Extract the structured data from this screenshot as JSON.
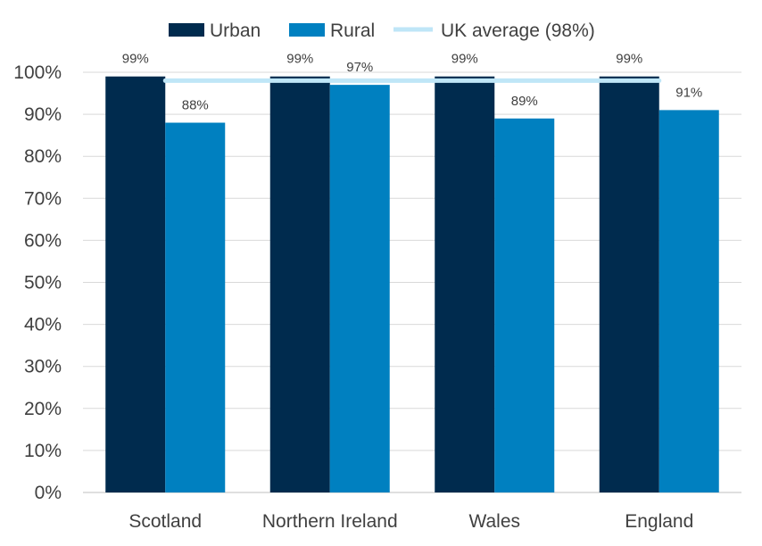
{
  "chart_data": {
    "type": "bar",
    "categories": [
      "Scotland",
      "Northern Ireland",
      "Wales",
      "England"
    ],
    "series": [
      {
        "name": "Urban",
        "values": [
          99,
          99,
          99,
          99
        ],
        "color": "#002b4e",
        "labels": [
          "99%",
          "99%",
          "99%",
          "99%"
        ]
      },
      {
        "name": "Rural",
        "values": [
          88,
          97,
          89,
          91
        ],
        "color": "#0080c0",
        "labels": [
          "88%",
          "97%",
          "89%",
          "91%"
        ]
      }
    ],
    "reference_line": {
      "name": "UK average (98%)",
      "value": 98,
      "color": "#bfe6f7"
    },
    "ylim": [
      0,
      100
    ],
    "yticks": [
      0,
      10,
      20,
      30,
      40,
      50,
      60,
      70,
      80,
      90,
      100
    ],
    "ytick_labels": [
      "0%",
      "10%",
      "20%",
      "30%",
      "40%",
      "50%",
      "60%",
      "70%",
      "80%",
      "90%",
      "100%"
    ],
    "grid": true,
    "legend_position": "top",
    "title": "",
    "xlabel": "",
    "ylabel": ""
  }
}
